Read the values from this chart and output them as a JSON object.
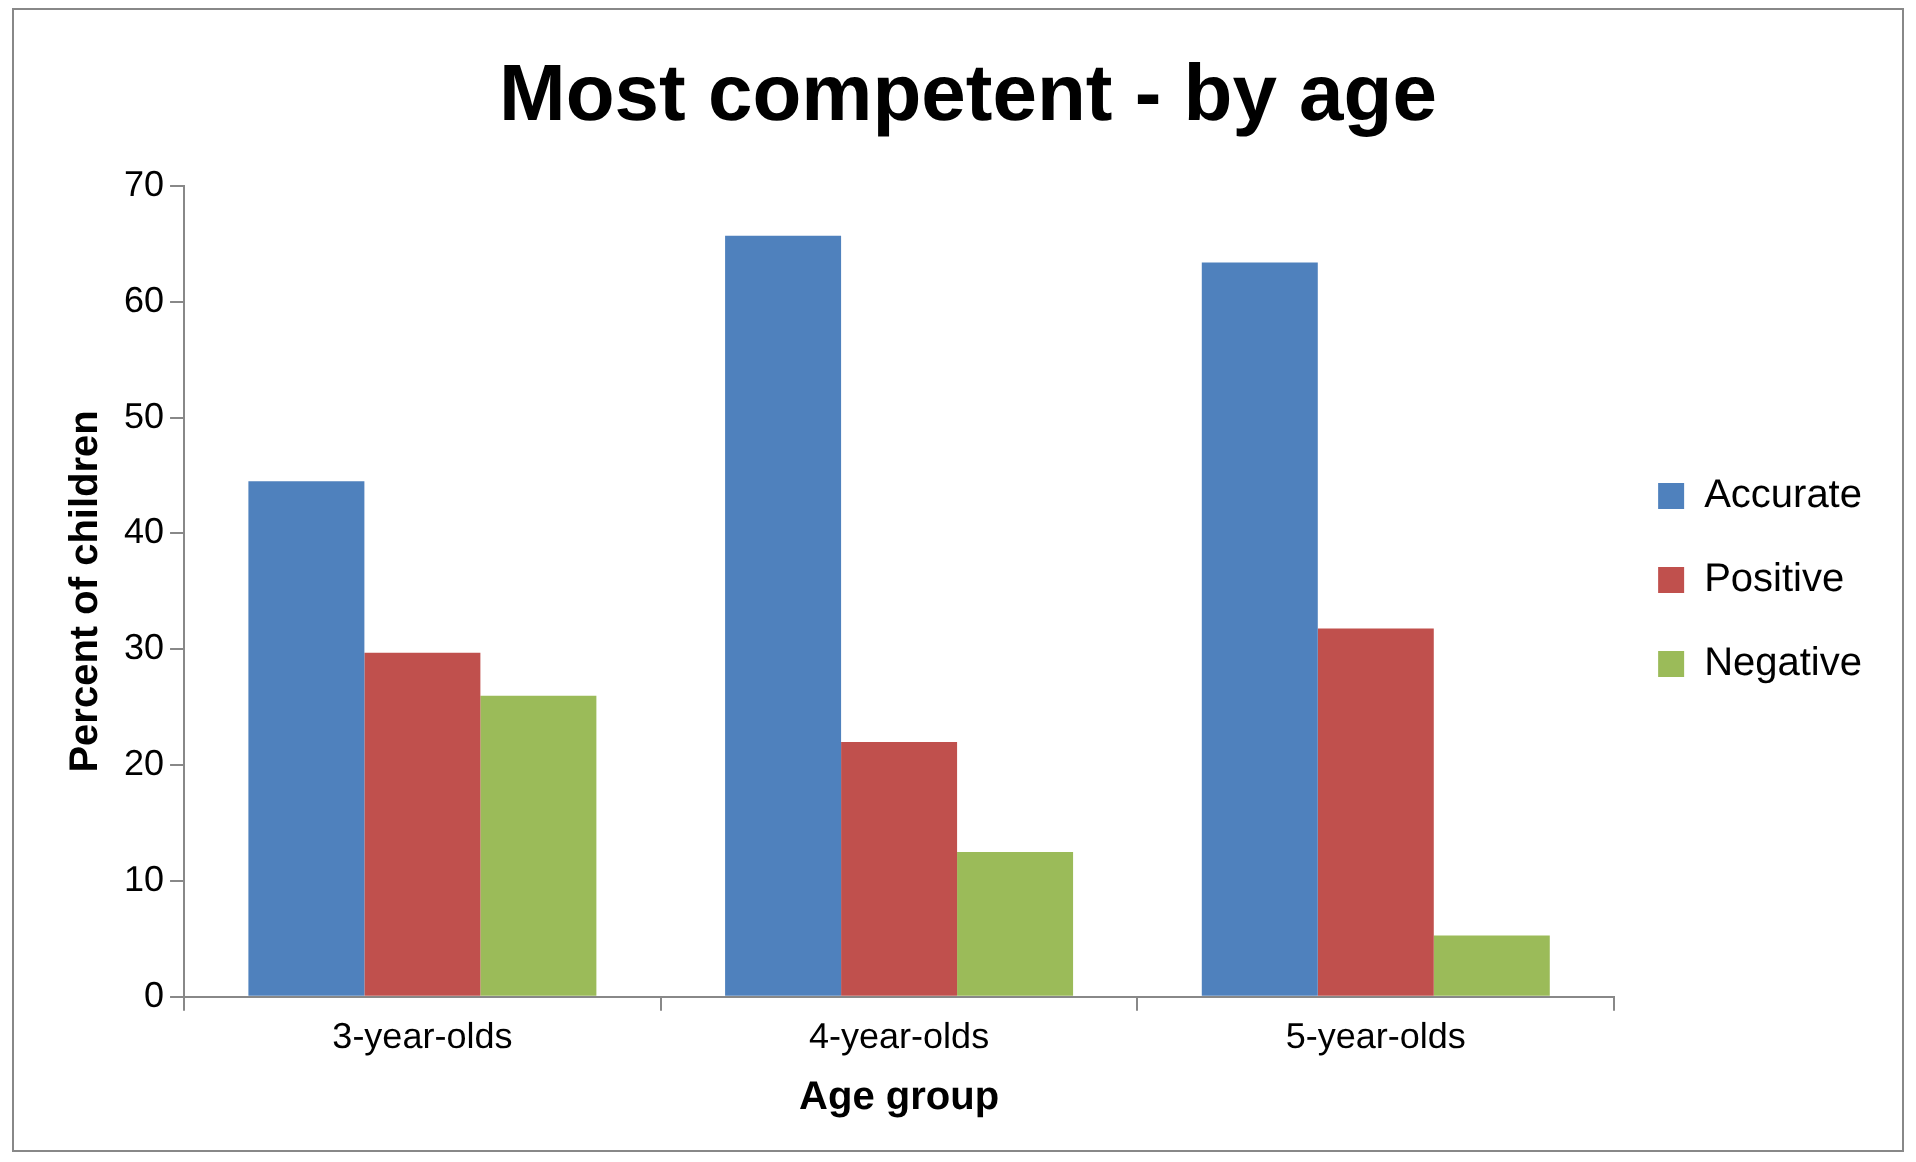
{
  "chart_data": {
    "type": "bar",
    "title": "Most competent - by age",
    "xlabel": "Age group",
    "ylabel": "Percent of children",
    "categories": [
      "3-year-olds",
      "4-year-olds",
      "5-year-olds"
    ],
    "series": [
      {
        "name": "Accurate",
        "color": "#4f81bd",
        "values": [
          44.5,
          65.7,
          63.4
        ]
      },
      {
        "name": "Positive",
        "color": "#c0504d",
        "values": [
          29.7,
          22,
          31.8
        ]
      },
      {
        "name": "Negative",
        "color": "#9bbb59",
        "values": [
          26,
          12.5,
          5.3
        ]
      }
    ],
    "ylim": [
      0,
      70
    ],
    "yticks": [
      0,
      10,
      20,
      30,
      40,
      50,
      60,
      70
    ],
    "grid": false,
    "legend": "right"
  }
}
